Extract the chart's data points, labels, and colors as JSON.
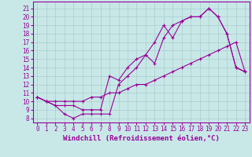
{
  "xlabel": "Windchill (Refroidissement éolien,°C)",
  "ylabel_ticks": [
    8,
    9,
    10,
    11,
    12,
    13,
    14,
    15,
    16,
    17,
    18,
    19,
    20,
    21
  ],
  "xticks": [
    0,
    1,
    2,
    3,
    4,
    5,
    6,
    7,
    8,
    9,
    10,
    11,
    12,
    13,
    14,
    15,
    16,
    17,
    18,
    19,
    20,
    21,
    22,
    23
  ],
  "xlim": [
    -0.5,
    23.5
  ],
  "ylim": [
    7.5,
    21.8
  ],
  "bg_color": "#c8e8e8",
  "grid_color": "#aacccc",
  "line_color": "#990099",
  "curve1_x": [
    0,
    1,
    2,
    3,
    4,
    5,
    6,
    7,
    8,
    9,
    10,
    11,
    12,
    13,
    14,
    15,
    16,
    17,
    18,
    19,
    20,
    21,
    22,
    23
  ],
  "curve1_y": [
    10.5,
    10.0,
    9.5,
    8.5,
    8.0,
    8.5,
    8.5,
    8.5,
    8.5,
    12.0,
    13.0,
    14.0,
    15.5,
    17.0,
    19.0,
    17.5,
    19.5,
    20.0,
    20.0,
    21.0,
    20.0,
    18.0,
    14.0,
    13.5
  ],
  "curve2_x": [
    0,
    1,
    2,
    3,
    4,
    5,
    6,
    7,
    8,
    9,
    10,
    11,
    12,
    13,
    14,
    15,
    16,
    17,
    18,
    19,
    20,
    21,
    22,
    23
  ],
  "curve2_y": [
    10.5,
    10.0,
    9.5,
    9.5,
    9.5,
    9.0,
    9.0,
    9.0,
    13.0,
    12.5,
    14.0,
    15.0,
    15.5,
    14.5,
    17.5,
    19.0,
    19.5,
    20.0,
    20.0,
    21.0,
    20.0,
    18.0,
    14.0,
    13.5
  ],
  "curve3_x": [
    0,
    1,
    2,
    3,
    4,
    5,
    6,
    7,
    8,
    9,
    10,
    11,
    12,
    13,
    14,
    15,
    16,
    17,
    18,
    19,
    20,
    21,
    22,
    23
  ],
  "curve3_y": [
    10.5,
    10.0,
    10.0,
    10.0,
    10.0,
    10.0,
    10.5,
    10.5,
    11.0,
    11.0,
    11.5,
    12.0,
    12.0,
    12.5,
    13.0,
    13.5,
    14.0,
    14.5,
    15.0,
    15.5,
    16.0,
    16.5,
    17.0,
    13.5
  ],
  "marker": "+",
  "markersize": 3,
  "linewidth": 0.8,
  "tick_fontsize": 5.5,
  "xlabel_fontsize": 6.5
}
